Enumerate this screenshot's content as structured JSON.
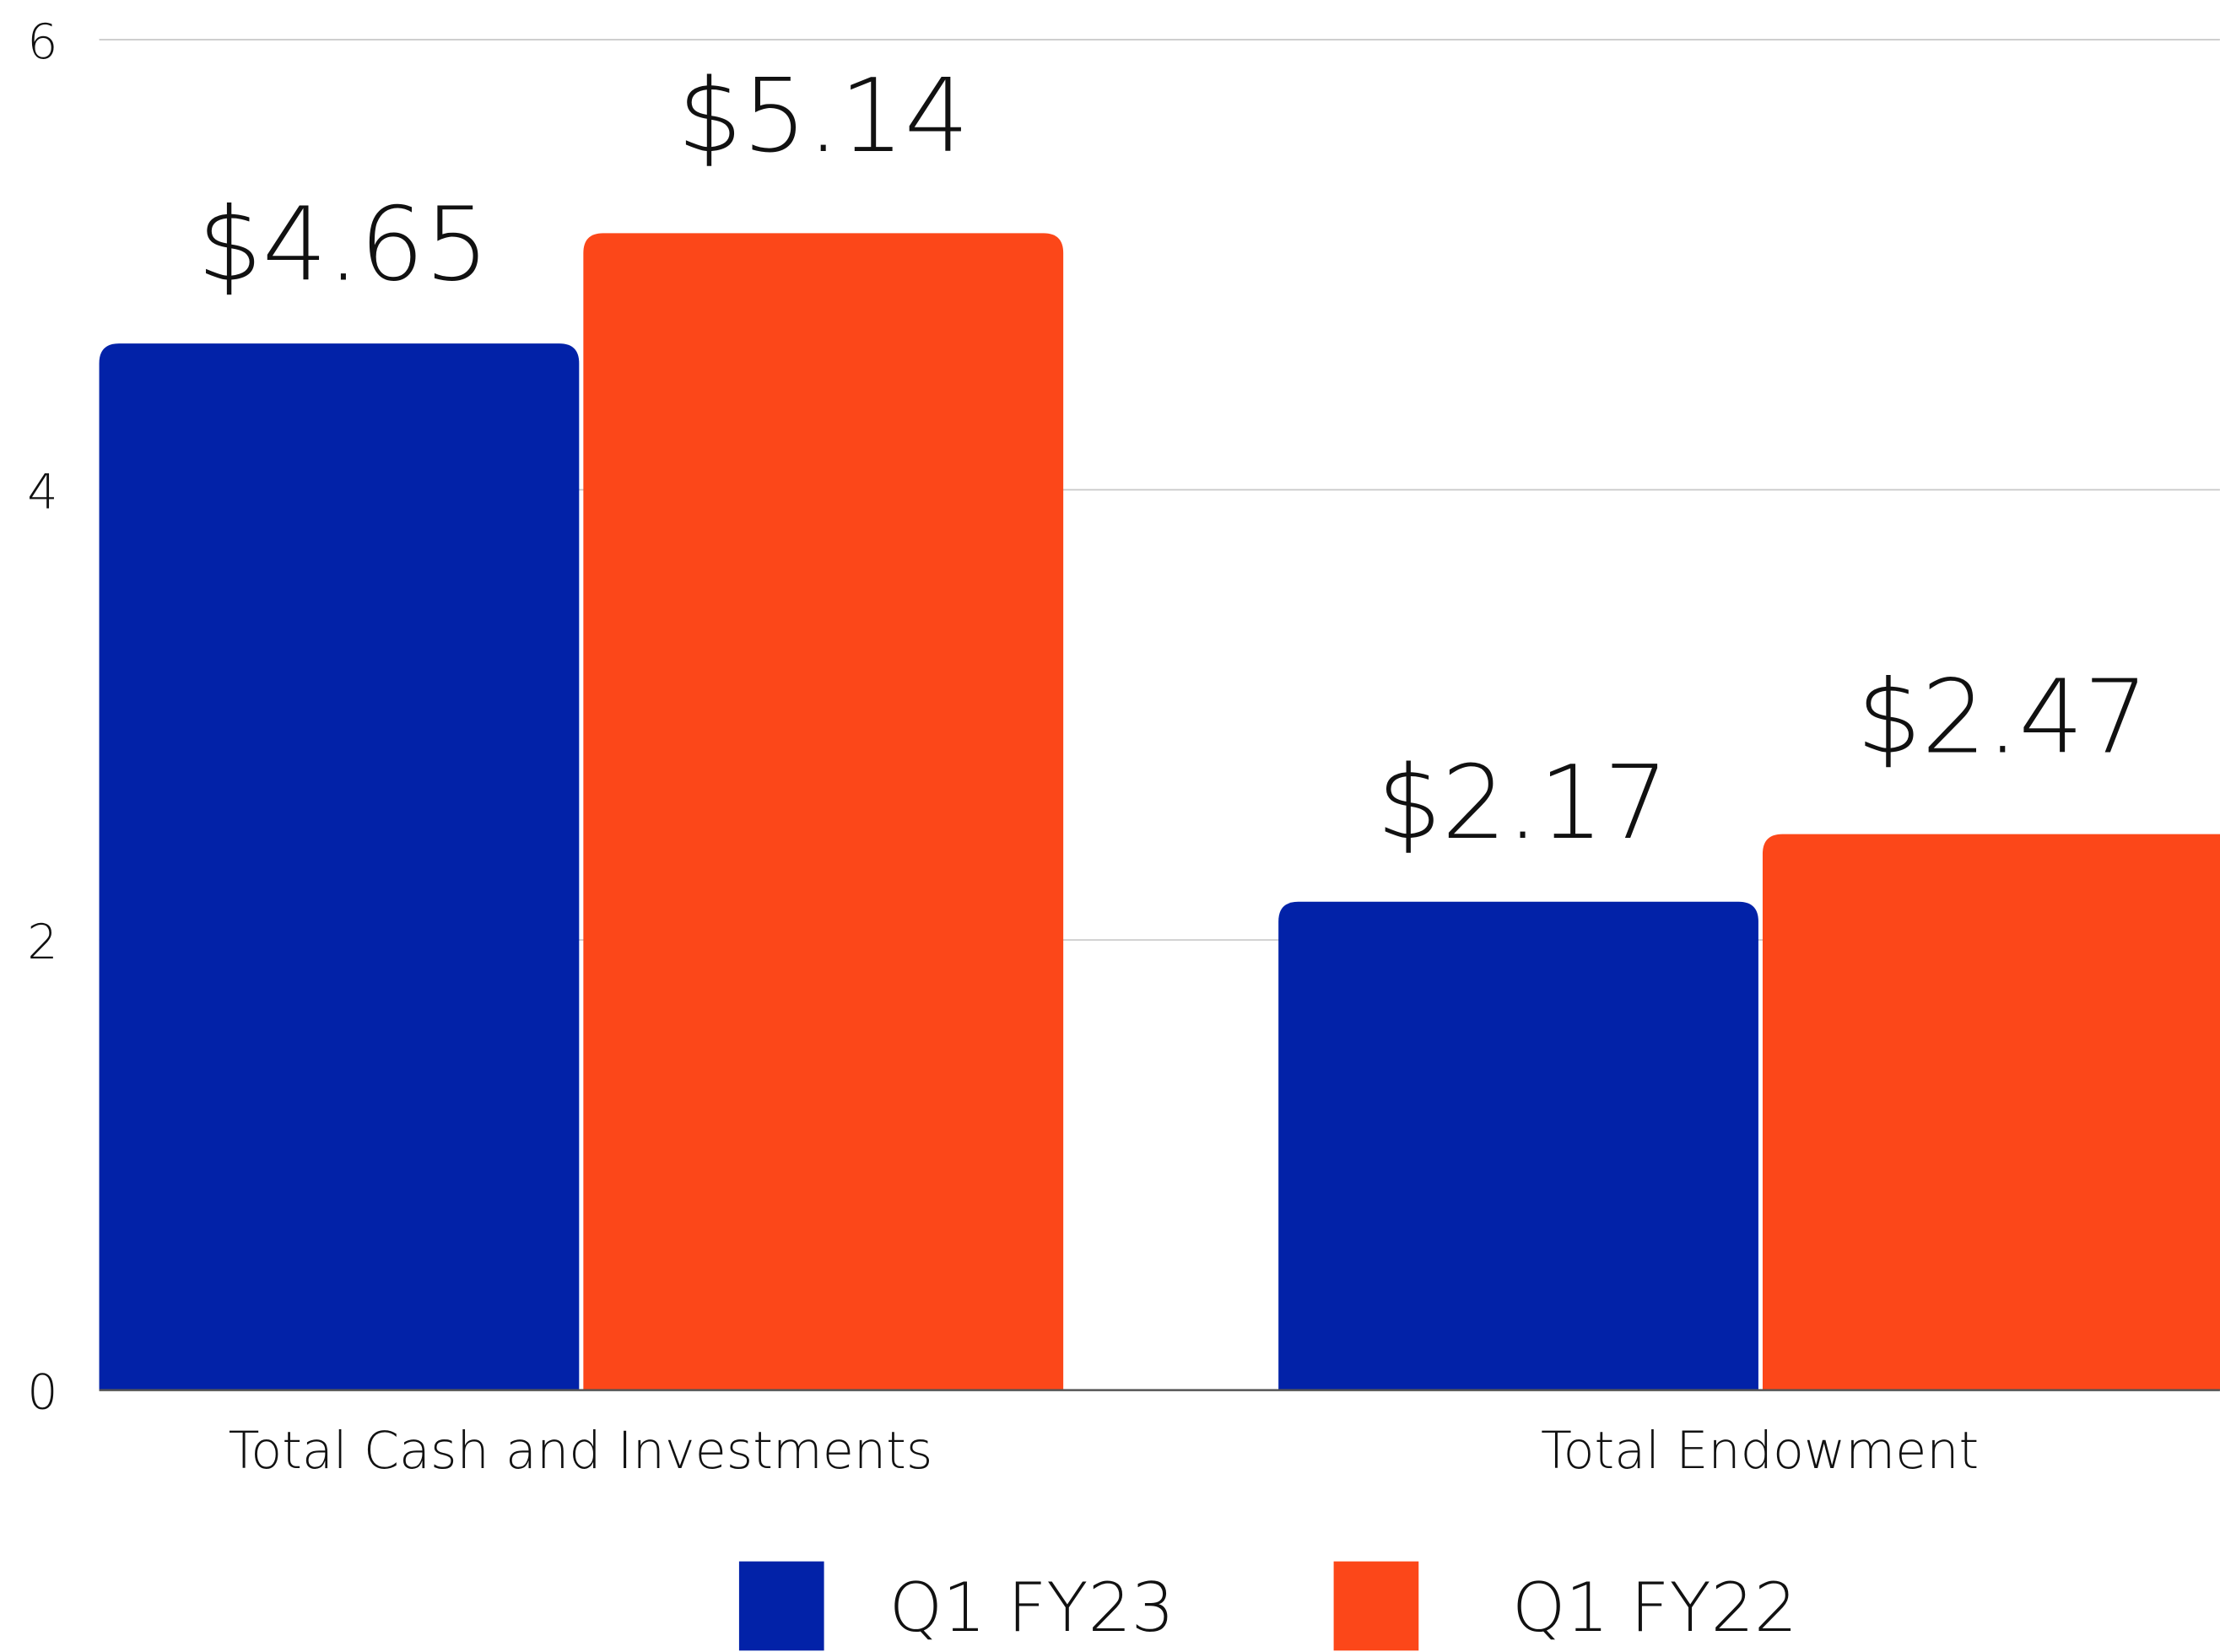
{
  "chart_data": {
    "type": "bar",
    "categories": [
      "Total Cash and Investments",
      "Total Endowment"
    ],
    "series": [
      {
        "name": "Q1 FY23",
        "color": "#0222a8",
        "values": [
          4.65,
          2.17
        ],
        "value_labels": [
          "$4.65",
          "$2.17"
        ]
      },
      {
        "name": "Q1 FY22",
        "color": "#fc4719",
        "values": [
          5.14,
          2.47
        ],
        "value_labels": [
          "$5.14",
          "$2.47"
        ]
      }
    ],
    "ylim": [
      0,
      6
    ],
    "yticks": [
      0,
      2,
      4,
      6
    ],
    "grid": true,
    "legend": "bottom"
  }
}
